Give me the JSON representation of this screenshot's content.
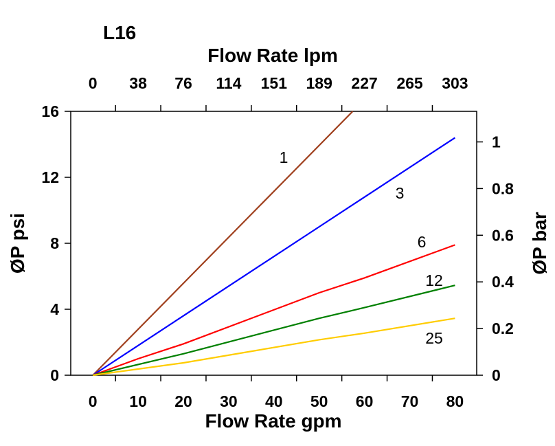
{
  "chart_data": {
    "type": "line",
    "title": "L16",
    "xlabel": "Flow Rate gpm",
    "x2label": "Flow Rate lpm",
    "ylabel": "ØP psi",
    "y2label": "ØP bar",
    "xlim": [
      -5,
      85
    ],
    "ylim": [
      0,
      16
    ],
    "xticks": [
      "0",
      "10",
      "20",
      "30",
      "40",
      "50",
      "60",
      "70",
      "80"
    ],
    "x2ticks": [
      "0",
      "38",
      "76",
      "114",
      "151",
      "189",
      "227",
      "265",
      "303"
    ],
    "yticks": [
      "0",
      "4",
      "8",
      "12",
      "16"
    ],
    "y2ticks": [
      "0",
      "0.2",
      "0.4",
      "0.6",
      "0.8",
      "1"
    ],
    "grid": false,
    "series": [
      {
        "name": "1",
        "color": "#a0401e",
        "points": [
          [
            0,
            0
          ],
          [
            57.4,
            16
          ]
        ]
      },
      {
        "name": "3",
        "color": "#0000ff",
        "points": [
          [
            0,
            0
          ],
          [
            20,
            3.6
          ],
          [
            50,
            9.0
          ],
          [
            60,
            10.8
          ],
          [
            80,
            14.4
          ]
        ]
      },
      {
        "name": "6",
        "color": "#ff0000",
        "points": [
          [
            0,
            0
          ],
          [
            10,
            1.0
          ],
          [
            20,
            1.9
          ],
          [
            50,
            5.0
          ],
          [
            60,
            5.9
          ],
          [
            80,
            7.9
          ]
        ]
      },
      {
        "name": "12",
        "color": "#008000",
        "points": [
          [
            0,
            0
          ],
          [
            20,
            1.3
          ],
          [
            50,
            3.45
          ],
          [
            60,
            4.1
          ],
          [
            80,
            5.45
          ]
        ]
      },
      {
        "name": "25",
        "color": "#ffcc00",
        "points": [
          [
            0,
            0
          ],
          [
            20,
            0.75
          ],
          [
            50,
            2.15
          ],
          [
            60,
            2.55
          ],
          [
            80,
            3.45
          ]
        ]
      }
    ]
  }
}
